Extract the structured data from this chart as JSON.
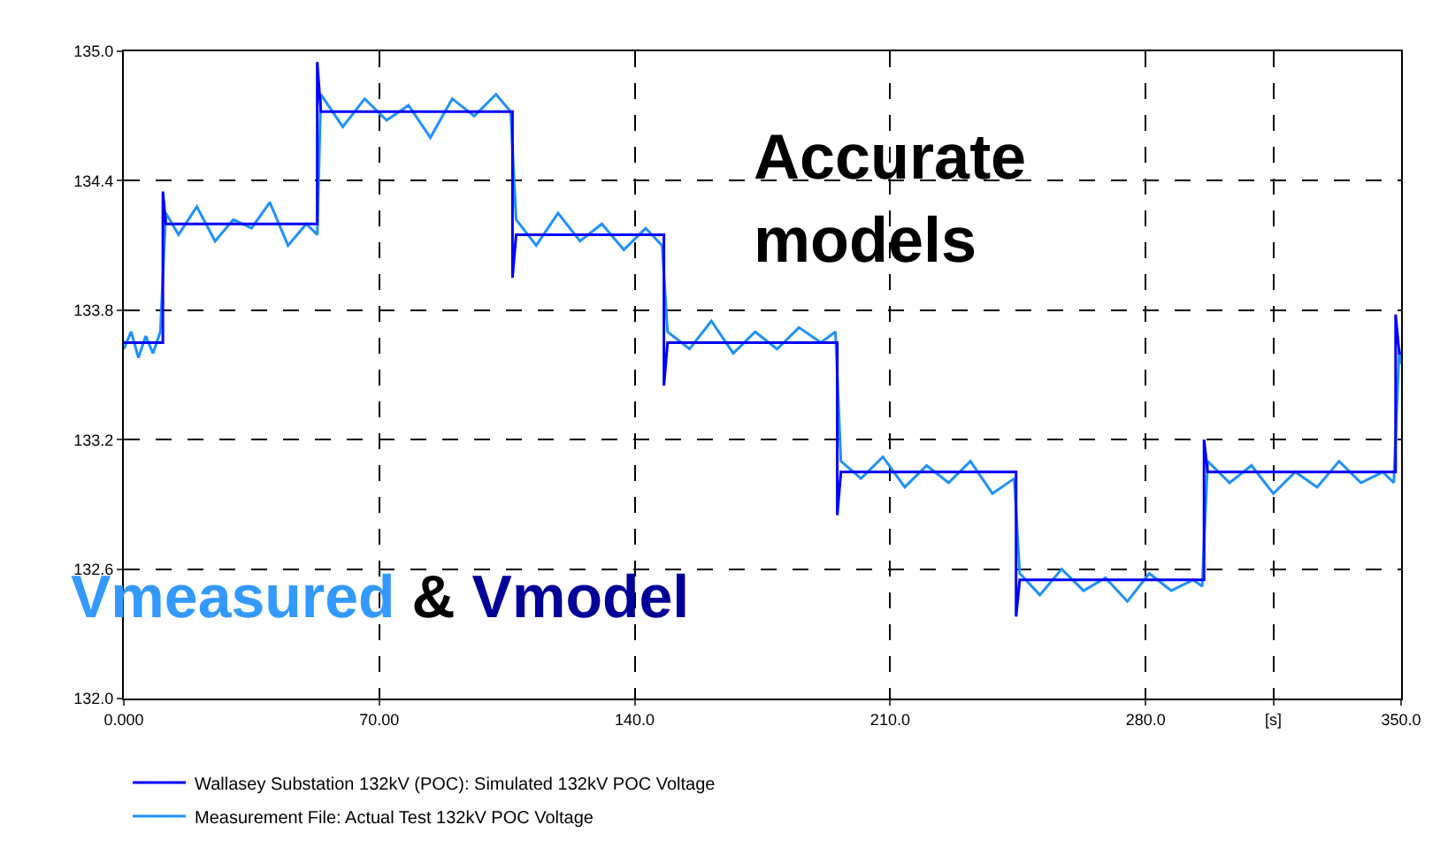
{
  "chart_data": {
    "type": "line",
    "xlim": [
      0,
      350
    ],
    "xticks": [
      {
        "value": 0,
        "label": "0.000"
      },
      {
        "value": 70,
        "label": "70.00"
      },
      {
        "value": 140,
        "label": "140.0"
      },
      {
        "value": 210,
        "label": "210.0"
      },
      {
        "value": 280,
        "label": "280.0"
      },
      {
        "value": 315,
        "label": "[s]"
      },
      {
        "value": 350,
        "label": "350.0"
      }
    ],
    "ylim": [
      132.0,
      135.0
    ],
    "yticks": [
      {
        "value": 132.0,
        "label": "132.0"
      },
      {
        "value": 132.6,
        "label": "132.6"
      },
      {
        "value": 133.2,
        "label": "133.2"
      },
      {
        "value": 133.8,
        "label": "133.8"
      },
      {
        "value": 134.4,
        "label": "134.4"
      },
      {
        "value": 135.0,
        "label": "135.0"
      }
    ],
    "grid": true,
    "legend": "bottom left",
    "marker": "none",
    "line_style": "solid",
    "annotations": [
      "Accurate\nmodels",
      "Vmeasured & Vmodel"
    ],
    "series": [
      {
        "name": "Wallasey Substation 132kV (POC): Simulated 132kV POC Voltage",
        "color": "#0000ff",
        "x": [
          0,
          10.7,
          10.7,
          11.5,
          53,
          53,
          54,
          106.5,
          106.5,
          107.5,
          148,
          148,
          149,
          195.5,
          195.5,
          196.5,
          244.5,
          244.5,
          245.5,
          296,
          296,
          297,
          348.5,
          348.5,
          349.5,
          350
        ],
        "values": [
          133.65,
          133.65,
          134.35,
          134.2,
          134.2,
          134.95,
          134.72,
          134.72,
          133.95,
          134.15,
          134.15,
          133.45,
          133.65,
          133.65,
          132.85,
          133.05,
          133.05,
          132.38,
          132.55,
          132.55,
          133.2,
          133.05,
          133.05,
          133.78,
          133.6,
          133.6
        ]
      },
      {
        "name": "Measurement File: Actual Test 132kV POC Voltage",
        "color": "#1e90ff",
        "x": [
          0,
          2,
          4,
          6,
          8,
          10,
          11.5,
          15,
          20,
          25,
          30,
          35,
          40,
          45,
          50,
          53,
          54,
          60,
          66,
          72,
          78,
          84,
          90,
          96,
          102,
          106,
          107.5,
          113,
          119,
          125,
          131,
          137,
          143,
          147.5,
          149,
          155,
          161,
          167,
          173,
          179,
          185,
          191,
          195,
          196.5,
          202,
          208,
          214,
          220,
          226,
          232,
          238,
          244,
          245.5,
          251,
          257,
          263,
          269,
          275,
          281,
          287,
          293,
          295.5,
          297,
          303,
          309,
          315,
          321,
          327,
          333,
          339,
          345,
          348,
          349.5,
          350
        ],
        "values": [
          133.62,
          133.7,
          133.58,
          133.68,
          133.6,
          133.7,
          134.25,
          134.15,
          134.28,
          134.12,
          134.22,
          134.18,
          134.3,
          134.1,
          134.2,
          134.15,
          134.8,
          134.65,
          134.78,
          134.68,
          134.75,
          134.6,
          134.78,
          134.7,
          134.8,
          134.72,
          134.22,
          134.1,
          134.25,
          134.12,
          134.2,
          134.08,
          134.18,
          134.1,
          133.7,
          133.62,
          133.75,
          133.6,
          133.7,
          133.62,
          133.72,
          133.65,
          133.7,
          133.1,
          133.02,
          133.12,
          132.98,
          133.08,
          133.0,
          133.1,
          132.95,
          133.02,
          132.58,
          132.48,
          132.6,
          132.5,
          132.56,
          132.45,
          132.58,
          132.5,
          132.55,
          132.52,
          133.1,
          133.0,
          133.08,
          132.95,
          133.05,
          132.98,
          133.1,
          133.0,
          133.05,
          133.0,
          133.62,
          133.55
        ]
      }
    ]
  }
}
